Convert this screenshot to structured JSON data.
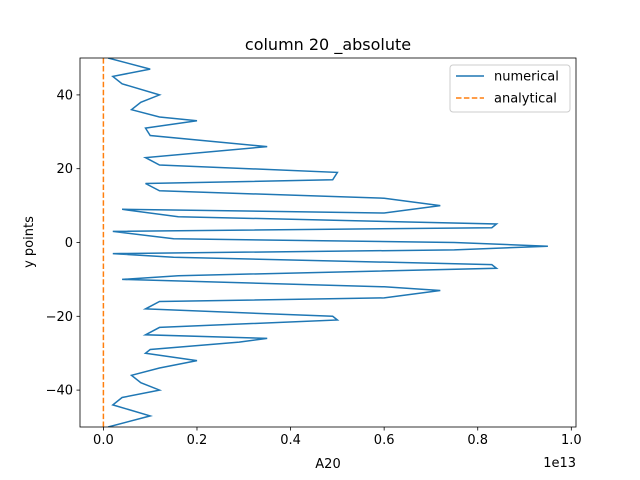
{
  "chart_data": {
    "type": "line",
    "title": "column 20 _absolute",
    "xlabel": "A20",
    "ylabel": "y points",
    "x_offset_label": "1e13",
    "x_scale": 10000000000000.0,
    "xlim": [
      -0.05,
      1.01
    ],
    "ylim": [
      -50,
      50
    ],
    "xticks": [
      0.0,
      0.2,
      0.4,
      0.6,
      0.8,
      1.0
    ],
    "xtick_labels": [
      "0.0",
      "0.2",
      "0.4",
      "0.6",
      "0.8",
      "1.0"
    ],
    "yticks": [
      -40,
      -20,
      0,
      20,
      40
    ],
    "ytick_labels": [
      "−40",
      "−20",
      "0",
      "20",
      "40"
    ],
    "grid": false,
    "legend_position": "top-right",
    "series": [
      {
        "name": "numerical",
        "color": "#1f77b4",
        "style": "solid",
        "x": [
          0.01,
          0.1,
          0.02,
          0.04,
          0.12,
          0.08,
          0.06,
          0.12,
          0.2,
          0.09,
          0.1,
          0.35,
          0.09,
          0.12,
          0.5,
          0.49,
          0.09,
          0.12,
          0.6,
          0.72,
          0.6,
          0.04,
          0.16,
          0.84,
          0.83,
          0.02,
          0.15,
          0.75,
          0.95,
          0.75,
          0.02,
          0.15,
          0.83,
          0.84,
          0.16,
          0.04,
          0.6,
          0.72,
          0.6,
          0.12,
          0.09,
          0.49,
          0.5,
          0.12,
          0.09,
          0.35,
          0.29,
          0.1,
          0.09,
          0.2,
          0.12,
          0.06,
          0.08,
          0.12,
          0.04,
          0.02,
          0.1,
          0.01
        ],
        "y": [
          50,
          47,
          45,
          43,
          40,
          38,
          36,
          34,
          33,
          31,
          29,
          26,
          23,
          21,
          19,
          17,
          16,
          14,
          12,
          10,
          8,
          9,
          7,
          5,
          4,
          3,
          1,
          0,
          -1,
          -2,
          -3,
          -4,
          -6,
          -7,
          -9,
          -10,
          -12,
          -13,
          -15,
          -16,
          -18,
          -20,
          -21,
          -23,
          -25,
          -26,
          -27,
          -29,
          -30,
          -32,
          -34,
          -36,
          -38,
          -40,
          -42,
          -44,
          -47,
          -50
        ]
      },
      {
        "name": "analytical",
        "color": "#ff7f0e",
        "style": "dashed",
        "x": [
          0,
          0
        ],
        "y": [
          -50,
          50
        ]
      }
    ]
  }
}
